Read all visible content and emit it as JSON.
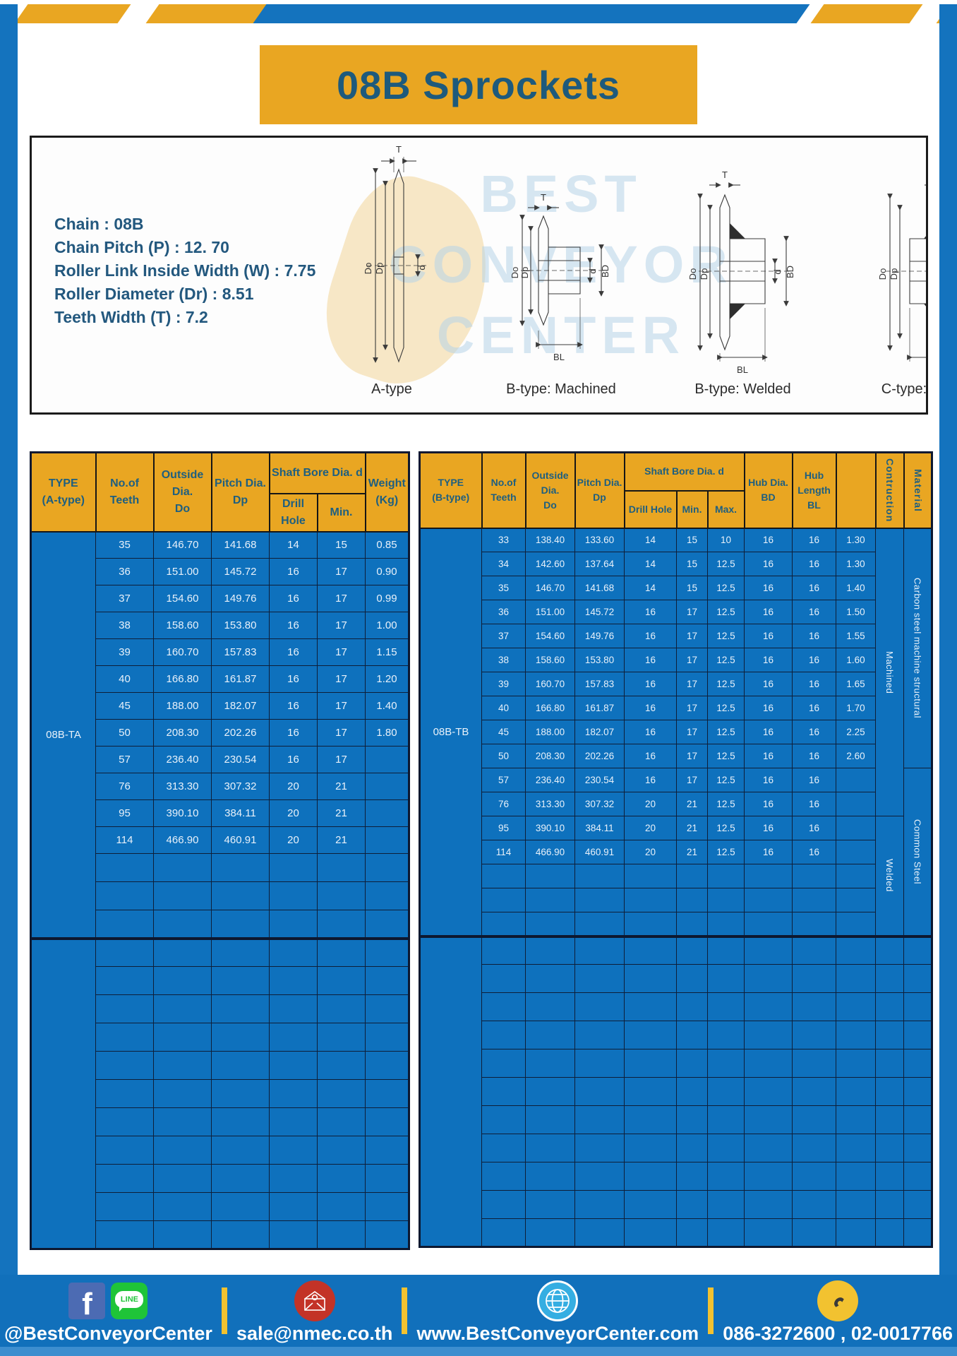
{
  "title": "08B Sprockets",
  "specs": {
    "lines": [
      "Chain  : 08B",
      "Chain Pitch (P)  :  12. 70",
      "Roller Link Inside Width (W)  :  7.75",
      "Roller Diameter (Dr)  : 8.51",
      "Teeth Width (T)  :  7.2"
    ]
  },
  "diagram": {
    "watermark_lines": [
      "BEST",
      "CONVEYOR",
      "CENTER"
    ],
    "figure_labels": [
      "A-type",
      "B-type: Machined",
      "B-type: Welded",
      "C-type: Welded"
    ],
    "dims": {
      "t": "T",
      "outer": "Do",
      "pitch": "Dp",
      "bore": "d",
      "hub": "BD",
      "hub_len": "BL"
    }
  },
  "table_a": {
    "headers": {
      "type": "TYPE\n(A-type)",
      "teeth": "No.of\nTeeth",
      "outside": "Outside\nDia.\nDo",
      "pitch": "Pitch Dia.\nDp",
      "shaft_bore": "Shaft Bore Dia. d",
      "drill": "Drill Hole",
      "min": "Min.",
      "weight": "Weight\n(Kg)"
    },
    "type_label": "08B-TA",
    "rows": [
      [
        "35",
        "146.70",
        "141.68",
        "14",
        "15",
        "0.85"
      ],
      [
        "36",
        "151.00",
        "145.72",
        "16",
        "17",
        "0.90"
      ],
      [
        "37",
        "154.60",
        "149.76",
        "16",
        "17",
        "0.99"
      ],
      [
        "38",
        "158.60",
        "153.80",
        "16",
        "17",
        "1.00"
      ],
      [
        "39",
        "160.70",
        "157.83",
        "16",
        "17",
        "1.15"
      ],
      [
        "40",
        "166.80",
        "161.87",
        "16",
        "17",
        "1.20"
      ],
      [
        "45",
        "188.00",
        "182.07",
        "16",
        "17",
        "1.40"
      ],
      [
        "50",
        "208.30",
        "202.26",
        "16",
        "17",
        "1.80"
      ],
      [
        "57",
        "236.40",
        "230.54",
        "16",
        "17",
        ""
      ],
      [
        "76",
        "313.30",
        "307.32",
        "20",
        "21",
        ""
      ],
      [
        "95",
        "390.10",
        "384.11",
        "20",
        "21",
        ""
      ],
      [
        "114",
        "466.90",
        "460.91",
        "20",
        "21",
        ""
      ]
    ],
    "empty_rows": {
      "group1": 3,
      "group2": 11
    }
  },
  "table_b": {
    "headers": {
      "type": "TYPE\n(B-type)",
      "teeth": "No.of\nTeeth",
      "outside": "Outside\nDia.\nDo",
      "pitch": "Pitch Dia.\nDp",
      "shaft_bore": "Shaft Bore Dia. d",
      "drill": "Drill Hole",
      "min": "Min.",
      "max": "Max.",
      "hub_dia": "Hub Dia.\nBD",
      "hub_len": "Hub\nLength\nBL",
      "construction": "Contruction",
      "material": "Material"
    },
    "type_label": "08B-TB",
    "rows": [
      [
        "33",
        "138.40",
        "133.60",
        "14",
        "15",
        "10",
        "16",
        "16",
        "1.30"
      ],
      [
        "34",
        "142.60",
        "137.64",
        "14",
        "15",
        "12.5",
        "16",
        "16",
        "1.30"
      ],
      [
        "35",
        "146.70",
        "141.68",
        "14",
        "15",
        "12.5",
        "16",
        "16",
        "1.40"
      ],
      [
        "36",
        "151.00",
        "145.72",
        "16",
        "17",
        "12.5",
        "16",
        "16",
        "1.50"
      ],
      [
        "37",
        "154.60",
        "149.76",
        "16",
        "17",
        "12.5",
        "16",
        "16",
        "1.55"
      ],
      [
        "38",
        "158.60",
        "153.80",
        "16",
        "17",
        "12.5",
        "16",
        "16",
        "1.60"
      ],
      [
        "39",
        "160.70",
        "157.83",
        "16",
        "17",
        "12.5",
        "16",
        "16",
        "1.65"
      ],
      [
        "40",
        "166.80",
        "161.87",
        "16",
        "17",
        "12.5",
        "16",
        "16",
        "1.70"
      ],
      [
        "45",
        "188.00",
        "182.07",
        "16",
        "17",
        "12.5",
        "16",
        "16",
        "2.25"
      ],
      [
        "50",
        "208.30",
        "202.26",
        "16",
        "17",
        "12.5",
        "16",
        "16",
        "2.60"
      ],
      [
        "57",
        "236.40",
        "230.54",
        "16",
        "17",
        "12.5",
        "16",
        "16",
        ""
      ],
      [
        "76",
        "313.30",
        "307.32",
        "20",
        "21",
        "12.5",
        "16",
        "16",
        ""
      ],
      [
        "95",
        "390.10",
        "384.11",
        "20",
        "21",
        "12.5",
        "16",
        "16",
        ""
      ],
      [
        "114",
        "466.90",
        "460.91",
        "20",
        "21",
        "12.5",
        "16",
        "16",
        ""
      ]
    ],
    "construction_spans": [
      {
        "label": "Machined",
        "start": 0,
        "count": 12
      },
      {
        "label": "Welded",
        "start": 12,
        "count": 5
      }
    ],
    "material_spans": [
      {
        "label": "Carbon steel  machine  structural",
        "start": 0,
        "count": 10
      },
      {
        "label": "Common  Steel",
        "start": 10,
        "count": 7
      }
    ],
    "empty_rows": {
      "group1": 3,
      "group2": 11
    }
  },
  "footer": {
    "social_handle": "@BestConveyorCenter",
    "facebook_letter": "f",
    "line_logo_text": "LINE",
    "email": "sale@nmec.co.th",
    "website": "www.BestConveyorCenter.com",
    "phones": "086-3272600 , 02-0017766"
  },
  "colors": {
    "accent_yellow": "#E9A622",
    "frame_blue": "#1473BE",
    "cell_blue": "#0E71BD",
    "header_text": "#1E5F80",
    "grid_line": "#0E1E38",
    "footer_blue": "#1170BB"
  }
}
